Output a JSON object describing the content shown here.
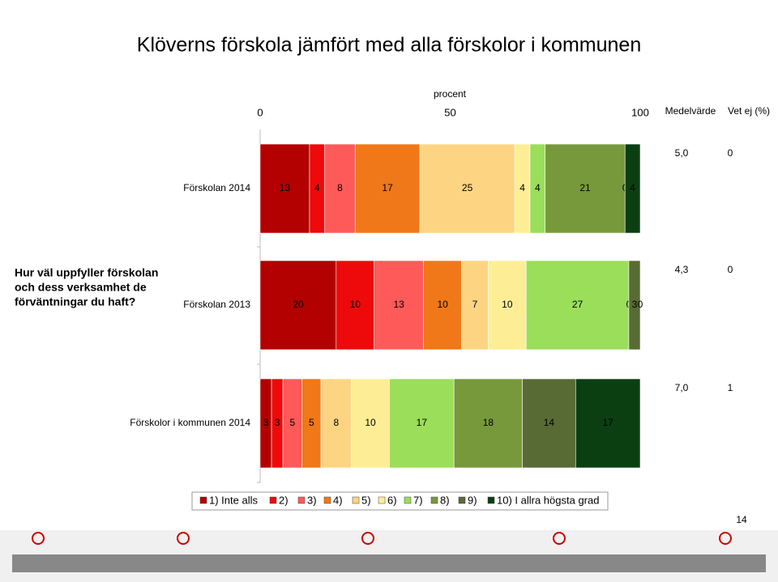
{
  "chart_data": {
    "type": "stacked-bar-horizontal",
    "title": "Klöverns förskola jämfört med alla förskolor i kommunen",
    "x_label": "procent",
    "xlim": [
      0,
      100
    ],
    "xticks": [
      0,
      50,
      100
    ],
    "question": [
      "Hur väl uppfyller förskolan",
      "och dess verksamhet de",
      "förväntningar du haft?"
    ],
    "categories": [
      "Förskolan 2014",
      "Förskolan 2013",
      "Förskolor i kommunen 2014"
    ],
    "series": [
      {
        "name": "1) Inte alls",
        "color": "#b30000",
        "values": [
          13,
          20,
          3
        ]
      },
      {
        "name": "2)",
        "color": "#ee0a0a",
        "values": [
          4,
          10,
          3
        ]
      },
      {
        "name": "3)",
        "color": "#ff5a5a",
        "values": [
          8,
          13,
          5
        ]
      },
      {
        "name": "4)",
        "color": "#f07818",
        "values": [
          17,
          10,
          5
        ]
      },
      {
        "name": "5)",
        "color": "#fdd582",
        "values": [
          25,
          7,
          8
        ]
      },
      {
        "name": "6)",
        "color": "#fdee96",
        "values": [
          4,
          10,
          10
        ]
      },
      {
        "name": "7)",
        "color": "#9ade5a",
        "values": [
          4,
          27,
          17
        ]
      },
      {
        "name": "8)",
        "color": "#77993c",
        "values": [
          21,
          0,
          18
        ]
      },
      {
        "name": "9)",
        "color": "#586b34",
        "values": [
          0,
          3,
          14
        ]
      },
      {
        "name": "10) I allra högsta grad",
        "color": "#0b3f12",
        "values": [
          4,
          0,
          17
        ]
      }
    ],
    "mean_header": "Medelvärde",
    "mean_labels": [
      "5,0",
      "4,3",
      "7,0"
    ],
    "unknown_header": "Vet ej (%)",
    "unknown_values": [
      0,
      0,
      1
    ],
    "page_number": "14"
  }
}
